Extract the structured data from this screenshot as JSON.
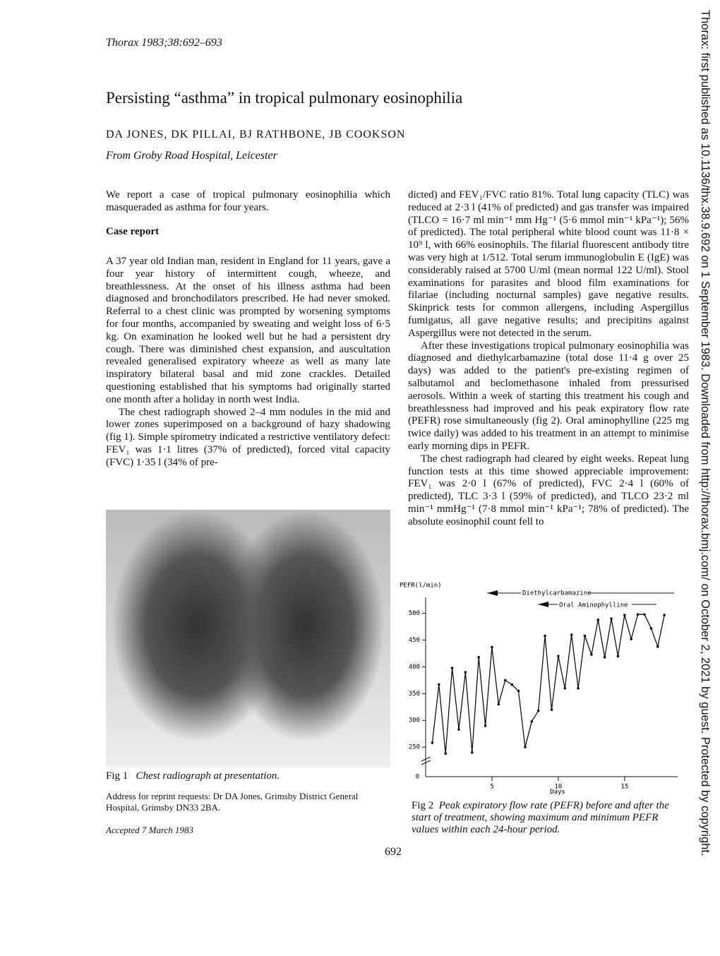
{
  "header": {
    "journal": "Thorax 1983;38:692–693",
    "title": "Persisting “asthma” in tropical pulmonary eosinophilia",
    "authors": "DA JONES, DK PILLAI, BJ RATHBONE, JB COOKSON",
    "affiliation": "From Groby Road Hospital, Leicester"
  },
  "abstract": "We report a case of tropical pulmonary eosinophilia which masqueraded as asthma for four years.",
  "section_heading": "Case report",
  "left_column": [
    "A 37 year old Indian man, resident in England for 11 years, gave a four year history of intermittent cough, wheeze, and breathlessness. At the onset of his illness asthma had been diagnosed and bronchodilators prescribed. He had never smoked. Referral to a chest clinic was prompted by worsening symptoms for four months, accompanied by sweating and weight loss of 6·5 kg. On examination he looked well but he had a persistent dry cough. There was diminished chest expansion, and auscultation revealed generalised expiratory wheeze as well as many late inspiratory bilateral basal and mid zone crackles. Detailed questioning established that his symptoms had originally started one month after a holiday in north west India.",
    "The chest radiograph showed 2–4 mm nodules in the mid and lower zones superimposed on a background of hazy shadowing (fig 1). Simple spirometry indicated a restrictive ventilatory defect: FEV₁ was 1·1 litres (37% of predicted), forced vital capacity (FVC) 1·35 l (34% of pre-"
  ],
  "figure1": {
    "label": "Fig 1",
    "caption": "Chest radiograph at presentation."
  },
  "address": "Address for reprint requests: Dr DA Jones, Grimsby District General Hospital, Grimsby DN33 2BA.",
  "accepted": "Accepted 7 March 1983",
  "right_column": [
    "dicted) and FEV₁/FVC ratio 81%. Total lung capacity (TLC) was reduced at 2·3 l (41% of predicted) and gas transfer was impaired (TLCO = 16·7 ml min⁻¹ mm Hg⁻¹ (5·6 mmol min⁻¹ kPa⁻¹); 56% of predicted). The total peripheral white blood count was 11·8 × 10⁹ l, with 66% eosinophils. The filarial fluorescent antibody titre was very high at 1/512. Total serum immunoglobulin E (IgE) was considerably raised at 5700 U/ml (mean normal 122 U/ml). Stool examinations for parasites and blood film examinations for filariae (including nocturnal samples) gave negative results. Skinprick tests for common allergens, including Aspergillus fumigatus, all gave negative results; and precipitins against Aspergillus were not detected in the serum.",
    "After these investigations tropical pulmonary eosinophilia was diagnosed and diethylcarbamazine (total dose 11·4 g over 25 days) was added to the patient's pre-existing regimen of salbutamol and beclomethasone inhaled from pressurised aerosols. Within a week of starting this treatment his cough and breathlessness had improved and his peak expiratory flow rate (PEFR) rose simultaneously (fig 2). Oral aminophylline (225 mg twice daily) was added to his treatment in an attempt to minimise early morning dips in PEFR.",
    "The chest radiograph had cleared by eight weeks. Repeat lung function tests at this time showed appreciable improvement: FEV₁ was 2·0 l (67% of predicted), FVC 2·4 l (60% of predicted), TLC 3·3 l (59% of predicted), and TLCO 23·2 ml min⁻¹ mmHg⁻¹ (7·8 mmol min⁻¹ kPa⁻¹; 78% of predicted). The absolute eosinophil count fell to"
  ],
  "figure2": {
    "label": "Fig 2",
    "caption": "Peak expiratory flow rate (PEFR) before and after the start of treatment, showing maximum and minimum PEFR values within each 24-hour period."
  },
  "page_number": "692",
  "side_note": "Thorax: first published as 10.1136/thx.38.9.692 on 1 September 1983. Downloaded from http://thorax.bmj.com/ on October 2, 2021 by guest. Protected by copyright.",
  "chart_data": {
    "type": "line",
    "y_label": "PEFR(l/min)",
    "x_label": "Days",
    "axis_origin_label": "0",
    "annotations": [
      "Diethylcarbamazine",
      "Oral Aminophylline"
    ],
    "x": [
      0.5,
      1,
      1.5,
      2,
      2.5,
      3,
      3.5,
      4,
      4.5,
      5,
      5.5,
      6,
      6.5,
      7,
      7.5,
      8,
      8.5,
      9,
      9.5,
      10,
      10.5,
      11,
      11.5,
      12,
      12.5,
      13,
      13.5,
      14,
      14.5,
      15,
      15.5,
      16,
      16.5,
      17,
      17.5,
      18
    ],
    "values": [
      258,
      367,
      238,
      398,
      283,
      390,
      240,
      418,
      290,
      437,
      330,
      375,
      367,
      355,
      250,
      298,
      318,
      458,
      320,
      420,
      360,
      460,
      360,
      458,
      423,
      488,
      418,
      490,
      420,
      497,
      452,
      498,
      498,
      472,
      438,
      497
    ],
    "color": "#111111",
    "xlim": [
      0,
      19
    ],
    "ylim": [
      200,
      530
    ],
    "xticks": [
      5,
      10,
      15
    ],
    "yticks": [
      250,
      300,
      350,
      400,
      450,
      500
    ]
  }
}
